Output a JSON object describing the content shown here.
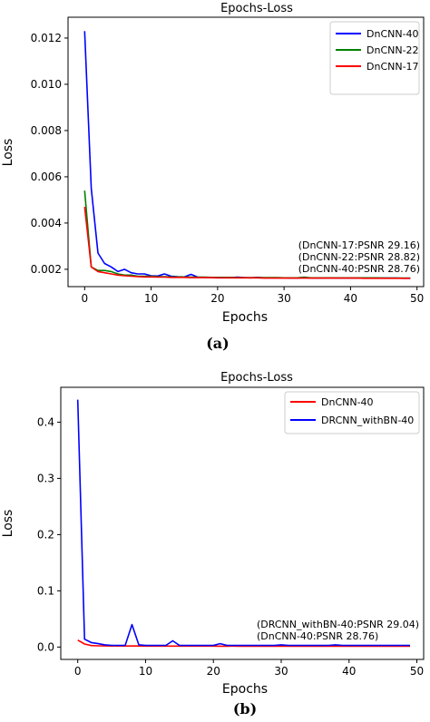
{
  "chart_data": [
    {
      "type": "line",
      "title": "Epochs-Loss",
      "xlabel": "Epochs",
      "ylabel": "Loss",
      "panel_label": "(a)",
      "xlim": [
        -2.5,
        51
      ],
      "ylim": [
        0.00125,
        0.0129
      ],
      "xticks": [
        0,
        10,
        20,
        30,
        40,
        50
      ],
      "yticks": [
        0.002,
        0.004,
        0.006,
        0.008,
        0.01,
        0.012
      ],
      "ytick_labels": [
        "0.002",
        "0.004",
        "0.006",
        "0.008",
        "0.010",
        "0.012"
      ],
      "grid": false,
      "legend_position": "top-right",
      "x": [
        0,
        1,
        2,
        3,
        4,
        5,
        6,
        7,
        8,
        9,
        10,
        11,
        12,
        13,
        14,
        15,
        16,
        17,
        18,
        19,
        20,
        21,
        22,
        23,
        24,
        25,
        26,
        27,
        28,
        29,
        30,
        31,
        32,
        33,
        34,
        35,
        36,
        37,
        38,
        39,
        40,
        41,
        42,
        43,
        44,
        45,
        46,
        47,
        48,
        49
      ],
      "series": [
        {
          "name": "DnCNN-40",
          "color": "#0000ff",
          "values": [
            0.0123,
            0.0055,
            0.0027,
            0.00225,
            0.0021,
            0.0019,
            0.002,
            0.00185,
            0.0018,
            0.0018,
            0.00172,
            0.00171,
            0.0018,
            0.0017,
            0.00168,
            0.00167,
            0.00178,
            0.00166,
            0.00165,
            0.00165,
            0.00165,
            0.00164,
            0.00164,
            0.00166,
            0.00164,
            0.00163,
            0.00165,
            0.00163,
            0.00163,
            0.00163,
            0.00163,
            0.00162,
            0.00162,
            0.00164,
            0.00162,
            0.00162,
            0.00162,
            0.00163,
            0.00162,
            0.00162,
            0.00162,
            0.00162,
            0.00162,
            0.00162,
            0.00162,
            0.00162,
            0.00162,
            0.00162,
            0.00161,
            0.00161
          ]
        },
        {
          "name": "DnCNN-22",
          "color": "#008000",
          "values": [
            0.0054,
            0.0021,
            0.00195,
            0.00195,
            0.0019,
            0.0018,
            0.00175,
            0.00175,
            0.0017,
            0.0017,
            0.0017,
            0.00168,
            0.00168,
            0.00167,
            0.00167,
            0.00167,
            0.00166,
            0.00166,
            0.00166,
            0.00165,
            0.00165,
            0.00165,
            0.00165,
            0.00164,
            0.00164,
            0.00164,
            0.00164,
            0.00164,
            0.00164,
            0.00164,
            0.00163,
            0.00163,
            0.00163,
            0.00166,
            0.00163,
            0.00163,
            0.00163,
            0.00163,
            0.00163,
            0.00163,
            0.00163,
            0.00163,
            0.00163,
            0.00163,
            0.00163,
            0.00162,
            0.00162,
            0.00162,
            0.00162,
            0.00162
          ]
        },
        {
          "name": "DnCNN-17",
          "color": "#ff0000",
          "values": [
            0.0047,
            0.0021,
            0.0019,
            0.00185,
            0.0018,
            0.00175,
            0.00172,
            0.0017,
            0.00168,
            0.00167,
            0.00167,
            0.00166,
            0.00166,
            0.00165,
            0.00165,
            0.00165,
            0.00164,
            0.00164,
            0.00164,
            0.00164,
            0.00163,
            0.00163,
            0.00163,
            0.00163,
            0.00163,
            0.00163,
            0.00163,
            0.00162,
            0.00162,
            0.00162,
            0.00162,
            0.00162,
            0.00162,
            0.00162,
            0.00162,
            0.00162,
            0.00162,
            0.00162,
            0.00162,
            0.00162,
            0.00162,
            0.00162,
            0.00161,
            0.00161,
            0.00161,
            0.00161,
            0.00161,
            0.00161,
            0.00161,
            0.00161
          ]
        }
      ],
      "annotations": [
        "(DnCNN-17:PSNR 29.16)",
        "(DnCNN-22:PSNR 28.82)",
        "(DnCNN-40:PSNR 28.76)"
      ]
    },
    {
      "type": "line",
      "title": "Epochs-Loss",
      "xlabel": "Epochs",
      "ylabel": "Loss",
      "panel_label": "(b)",
      "xlim": [
        -2.5,
        51
      ],
      "ylim": [
        -0.022,
        0.462
      ],
      "xticks": [
        0,
        10,
        20,
        30,
        40,
        50
      ],
      "yticks": [
        0.0,
        0.1,
        0.2,
        0.3,
        0.4
      ],
      "ytick_labels": [
        "0.0",
        "0.1",
        "0.2",
        "0.3",
        "0.4"
      ],
      "grid": false,
      "legend_position": "top-right",
      "x": [
        0,
        1,
        2,
        3,
        4,
        5,
        6,
        7,
        8,
        9,
        10,
        11,
        12,
        13,
        14,
        15,
        16,
        17,
        18,
        19,
        20,
        21,
        22,
        23,
        24,
        25,
        26,
        27,
        28,
        29,
        30,
        31,
        32,
        33,
        34,
        35,
        36,
        37,
        38,
        39,
        40,
        41,
        42,
        43,
        44,
        45,
        46,
        47,
        48,
        49
      ],
      "series": [
        {
          "name": "DnCNN-40",
          "color": "#ff0000",
          "values": [
            0.0123,
            0.0055,
            0.0027,
            0.0022,
            0.0021,
            0.0019,
            0.002,
            0.0018,
            0.0018,
            0.0018,
            0.0017,
            0.0017,
            0.0018,
            0.0017,
            0.0017,
            0.0017,
            0.0018,
            0.0017,
            0.0017,
            0.0017,
            0.0017,
            0.0016,
            0.0016,
            0.0017,
            0.0016,
            0.0016,
            0.0017,
            0.0016,
            0.0016,
            0.0016,
            0.0016,
            0.0016,
            0.0016,
            0.0016,
            0.0016,
            0.0016,
            0.0016,
            0.0016,
            0.0016,
            0.0016,
            0.0016,
            0.0016,
            0.0016,
            0.0016,
            0.0016,
            0.0016,
            0.0016,
            0.0016,
            0.0016,
            0.0016
          ]
        },
        {
          "name": "DRCNN_withBN-40",
          "color": "#0000ff",
          "values": [
            0.44,
            0.014,
            0.008,
            0.006,
            0.004,
            0.003,
            0.003,
            0.003,
            0.04,
            0.004,
            0.003,
            0.003,
            0.003,
            0.003,
            0.011,
            0.003,
            0.003,
            0.003,
            0.003,
            0.003,
            0.003,
            0.006,
            0.003,
            0.003,
            0.003,
            0.003,
            0.003,
            0.003,
            0.003,
            0.003,
            0.004,
            0.003,
            0.003,
            0.003,
            0.003,
            0.003,
            0.003,
            0.003,
            0.004,
            0.003,
            0.003,
            0.003,
            0.003,
            0.003,
            0.003,
            0.003,
            0.003,
            0.003,
            0.003,
            0.003
          ]
        }
      ],
      "annotations": [
        "(DRCNN_withBN-40:PSNR 29.04)",
        "(DnCNN-40:PSNR 28.76)"
      ]
    }
  ]
}
